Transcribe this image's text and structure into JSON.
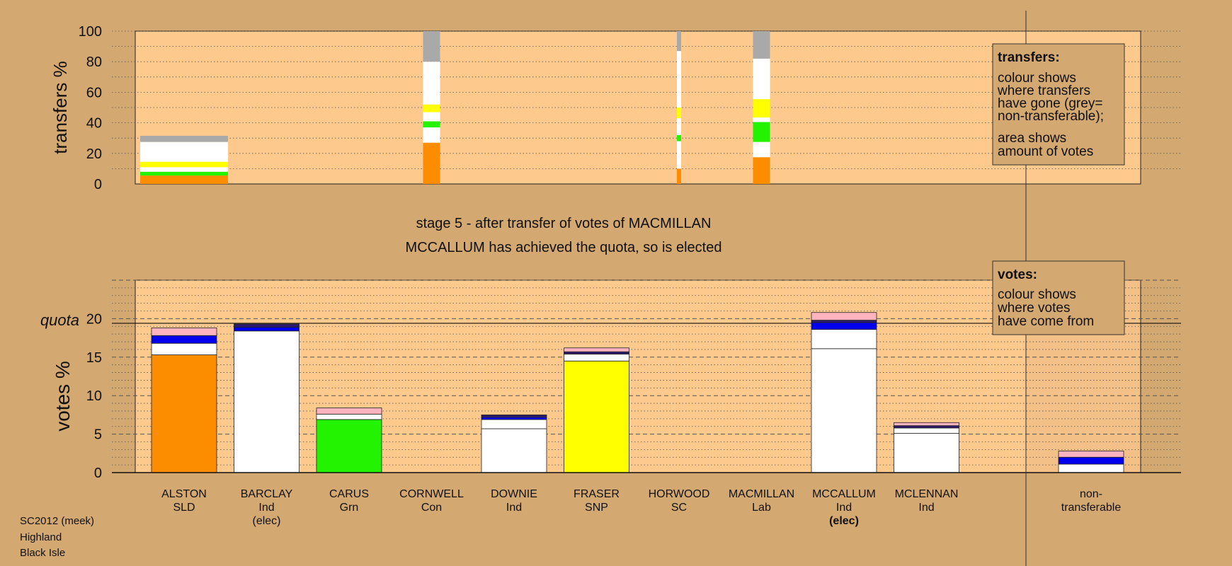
{
  "chart_data": {
    "type": "bar",
    "stage_title": "stage 5 - after transfer of votes of MACMILLAN",
    "stage_subtitle": "MCCALLUM has achieved the quota, so is elected",
    "colors": {
      "background": "#d3a871",
      "plot_background": "#fdc98d",
      "SLD": "#fd8d00",
      "Ind": "#ffffff",
      "Grn": "#23f200",
      "SNP": "#ffff00",
      "Ind2": "#0000ee",
      "Ind3": "#2d1a6b",
      "Lab": "#ffb3be",
      "nontransferable": "#a9a9a9"
    },
    "transfers": {
      "ylabel": "transfers %",
      "ylim": [
        0,
        100
      ],
      "yticks": [
        0,
        20,
        40,
        60,
        80,
        100
      ],
      "legend": {
        "title": "transfers:",
        "lines1": [
          "colour shows",
          "where transfers",
          "have gone (grey=",
          "non-transferable);"
        ],
        "lines2": [
          "area shows",
          "amount of votes"
        ]
      },
      "columns": [
        {
          "candidate": "ALSTON",
          "width": "wide",
          "segments": [
            {
              "color": "SLD",
              "value": 5.5
            },
            {
              "color": "Grn",
              "value": 2.5
            },
            {
              "color": "Ind",
              "value": 3
            },
            {
              "color": "SNP",
              "value": 3.5
            },
            {
              "color": "Ind",
              "value": 13
            },
            {
              "color": "nontransferable",
              "value": 4
            }
          ]
        },
        {
          "candidate": "CORNWELL",
          "width": "narrow",
          "segments": [
            {
              "color": "SLD",
              "value": 27
            },
            {
              "color": "Ind",
              "value": 10
            },
            {
              "color": "Grn",
              "value": 4
            },
            {
              "color": "Ind",
              "value": 6
            },
            {
              "color": "SNP",
              "value": 5
            },
            {
              "color": "Ind",
              "value": 28
            },
            {
              "color": "nontransferable",
              "value": 20
            }
          ]
        },
        {
          "candidate": "HORWOOD",
          "width": "thin",
          "segments": [
            {
              "color": "SLD",
              "value": 10
            },
            {
              "color": "Ind",
              "value": 18
            },
            {
              "color": "Grn",
              "value": 4
            },
            {
              "color": "Ind",
              "value": 11
            },
            {
              "color": "SNP",
              "value": 7
            },
            {
              "color": "Ind",
              "value": 37
            },
            {
              "color": "nontransferable",
              "value": 13
            }
          ]
        },
        {
          "candidate": "MACMILLAN",
          "width": "narrow",
          "segments": [
            {
              "color": "SLD",
              "value": 17.5
            },
            {
              "color": "Ind",
              "value": 10
            },
            {
              "color": "Grn",
              "value": 13
            },
            {
              "color": "Ind",
              "value": 3
            },
            {
              "color": "SNP",
              "value": 12
            },
            {
              "color": "Ind",
              "value": 26.5
            },
            {
              "color": "nontransferable",
              "value": 18
            }
          ]
        }
      ]
    },
    "votes": {
      "ylabel": "votes %",
      "ylim": [
        0,
        25
      ],
      "yticks": [
        0,
        5,
        10,
        15,
        20
      ],
      "quota_label": "quota",
      "quota": 19.4,
      "legend": {
        "title": "votes:",
        "lines": [
          "colour shows",
          "where votes",
          "have come from"
        ]
      },
      "candidates": [
        {
          "name": "ALSTON",
          "party": "SLD",
          "elec": "",
          "segments": [
            {
              "color": "SLD",
              "value": 15.3
            },
            {
              "color": "Ind",
              "value": 1.5
            },
            {
              "color": "Ind2",
              "value": 1.0
            },
            {
              "color": "Lab",
              "value": 1.0
            }
          ]
        },
        {
          "name": "BARCLAY",
          "party": "Ind",
          "elec": "(elec)",
          "segments": [
            {
              "color": "Ind",
              "value": 18.4
            },
            {
              "color": "Ind2",
              "value": 0.5
            },
            {
              "color": "Ind3",
              "value": 0.4
            }
          ]
        },
        {
          "name": "CARUS",
          "party": "Grn",
          "elec": "",
          "segments": [
            {
              "color": "Grn",
              "value": 6.9
            },
            {
              "color": "Ind",
              "value": 0.7
            },
            {
              "color": "Lab",
              "value": 0.8
            }
          ]
        },
        {
          "name": "CORNWELL",
          "party": "Con",
          "elec": "",
          "segments": []
        },
        {
          "name": "DOWNIE",
          "party": "Ind",
          "elec": "",
          "segments": [
            {
              "color": "Ind",
              "value": 5.7
            },
            {
              "color": "Ind",
              "value": 1.2
            },
            {
              "color": "Ind2",
              "value": 0.3
            },
            {
              "color": "Ind3",
              "value": 0.3
            }
          ]
        },
        {
          "name": "FRASER",
          "party": "SNP",
          "elec": "",
          "segments": [
            {
              "color": "SNP",
              "value": 14.5
            },
            {
              "color": "Ind",
              "value": 0.9
            },
            {
              "color": "Ind3",
              "value": 0.3
            },
            {
              "color": "Lab",
              "value": 0.5
            }
          ]
        },
        {
          "name": "HORWOOD",
          "party": "SC",
          "elec": "",
          "segments": []
        },
        {
          "name": "MACMILLAN",
          "party": "Lab",
          "elec": "",
          "segments": []
        },
        {
          "name": "MCCALLUM",
          "party": "Ind",
          "elec": "(elec)",
          "segments": [
            {
              "color": "Ind",
              "value": 16.1
            },
            {
              "color": "Ind",
              "value": 2.5
            },
            {
              "color": "Ind2",
              "value": 0.9
            },
            {
              "color": "Ind3",
              "value": 0.3
            },
            {
              "color": "Lab",
              "value": 1.0
            }
          ]
        },
        {
          "name": "MCLENNAN",
          "party": "Ind",
          "elec": "",
          "segments": [
            {
              "color": "Ind",
              "value": 5.1
            },
            {
              "color": "Ind",
              "value": 0.7
            },
            {
              "color": "Ind3",
              "value": 0.3
            },
            {
              "color": "Lab",
              "value": 0.4
            }
          ]
        }
      ],
      "nontransferable": {
        "name": "non-",
        "party": "transferable",
        "segments": [
          {
            "color": "Ind",
            "value": 1.1
          },
          {
            "color": "Ind2",
            "value": 0.9
          },
          {
            "color": "Lab",
            "value": 0.8
          }
        ]
      }
    }
  },
  "footer": {
    "line1": "SC2012 (meek)",
    "line2": "Highland",
    "line3": "Black Isle"
  }
}
